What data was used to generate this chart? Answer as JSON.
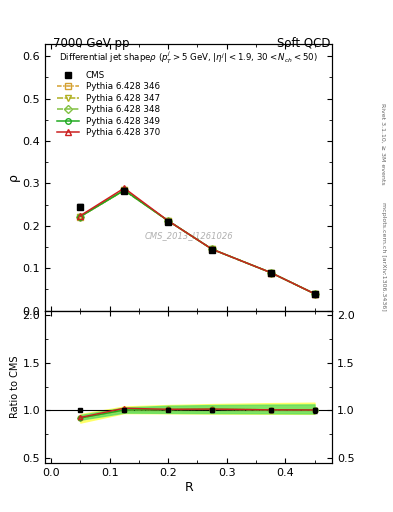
{
  "title_top": "7000 GeV pp",
  "title_right": "Soft QCD",
  "ylabel_main": "ρ",
  "ylabel_ratio": "Ratio to CMS",
  "xlabel": "R",
  "watermark": "CMS_2013_I1261026",
  "right_label_top": "Rivet 3.1.10, ≥ 3M events",
  "right_label_bot": "mcplots.cern.ch [arXiv:1306.3436]",
  "x_data": [
    0.05,
    0.125,
    0.2,
    0.275,
    0.375,
    0.45
  ],
  "cms_y": [
    0.245,
    0.283,
    0.21,
    0.143,
    0.09,
    0.04
  ],
  "cms_yerr": [
    0.006,
    0.006,
    0.004,
    0.004,
    0.003,
    0.002
  ],
  "py346_y": [
    0.222,
    0.284,
    0.212,
    0.145,
    0.09,
    0.04
  ],
  "py347_y": [
    0.222,
    0.284,
    0.212,
    0.145,
    0.09,
    0.04
  ],
  "py348_y": [
    0.222,
    0.284,
    0.212,
    0.145,
    0.09,
    0.04
  ],
  "py349_y": [
    0.222,
    0.284,
    0.212,
    0.145,
    0.09,
    0.04
  ],
  "py370_y": [
    0.224,
    0.289,
    0.212,
    0.145,
    0.09,
    0.04
  ],
  "ratio_346": [
    0.918,
    1.003,
    1.008,
    1.01,
    1.005,
    1.003
  ],
  "ratio_347": [
    0.918,
    1.003,
    1.008,
    1.01,
    1.005,
    1.003
  ],
  "ratio_348": [
    0.918,
    1.003,
    1.008,
    1.01,
    1.005,
    1.003
  ],
  "ratio_349": [
    0.918,
    1.003,
    1.008,
    1.01,
    1.005,
    1.003
  ],
  "ratio_370": [
    0.924,
    1.022,
    1.01,
    1.012,
    1.005,
    1.003
  ],
  "band_yellow_lo": [
    0.87,
    0.97,
    0.968,
    0.965,
    0.963,
    0.962
  ],
  "band_yellow_hi": [
    0.96,
    1.04,
    1.055,
    1.065,
    1.075,
    1.08
  ],
  "band_green_lo": [
    0.9,
    0.975,
    0.972,
    0.97,
    0.968,
    0.966
  ],
  "band_green_hi": [
    0.95,
    1.03,
    1.048,
    1.055,
    1.06,
    1.062
  ],
  "c346": "#d4a030",
  "c347": "#b0b020",
  "c348": "#80c040",
  "c349": "#20aa20",
  "c370": "#cc2020",
  "c_cms": "#000000",
  "ylim_main": [
    0.0,
    0.63
  ],
  "ylim_ratio": [
    0.44,
    2.05
  ],
  "xlim": [
    -0.01,
    0.48
  ]
}
